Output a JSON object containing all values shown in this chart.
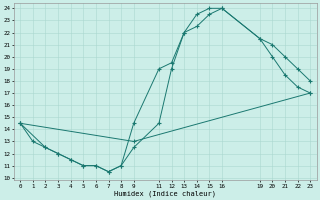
{
  "xlabel": "Humidex (Indice chaleur)",
  "background_color": "#cceee8",
  "grid_color": "#aad8d0",
  "line_color": "#1a7870",
  "line1_x": [
    0,
    1,
    2,
    3,
    4,
    5,
    6,
    7,
    8,
    9,
    11,
    12,
    13,
    14,
    15,
    16,
    19,
    20,
    21,
    22,
    23
  ],
  "line1_y": [
    14.5,
    13.0,
    12.5,
    12.0,
    11.5,
    11.0,
    11.0,
    10.5,
    11.0,
    12.5,
    14.5,
    19.0,
    22.0,
    23.5,
    24.0,
    24.0,
    21.5,
    21.0,
    20.0,
    19.0,
    18.0
  ],
  "line2_x": [
    0,
    2,
    3,
    4,
    5,
    6,
    7,
    8,
    9,
    11,
    12,
    13,
    14,
    15,
    16,
    19,
    20,
    21,
    22,
    23
  ],
  "line2_y": [
    14.5,
    12.5,
    12.0,
    11.5,
    11.0,
    11.0,
    10.5,
    11.0,
    14.5,
    19.0,
    19.5,
    22.0,
    22.5,
    23.5,
    24.0,
    21.5,
    20.0,
    18.5,
    17.5,
    17.0
  ],
  "line3_x": [
    0,
    9,
    23
  ],
  "line3_y": [
    14.5,
    13.0,
    17.0
  ],
  "xlim": [
    0,
    23
  ],
  "ylim": [
    10,
    24
  ],
  "xticks": [
    0,
    1,
    2,
    3,
    4,
    5,
    6,
    7,
    8,
    9,
    11,
    12,
    13,
    14,
    15,
    16,
    19,
    20,
    21,
    22,
    23
  ],
  "xtick_labels": [
    "0",
    "1",
    "2",
    "3",
    "4",
    "5",
    "6",
    "7",
    "8",
    "9",
    "11",
    "12",
    "13",
    "14",
    "15",
    "16",
    "19",
    "20",
    "21",
    "22",
    "23"
  ],
  "yticks": [
    10,
    11,
    12,
    13,
    14,
    15,
    16,
    17,
    18,
    19,
    20,
    21,
    22,
    23,
    24
  ],
  "ytick_labels": [
    "10",
    "11",
    "12",
    "13",
    "14",
    "15",
    "16",
    "17",
    "18",
    "19",
    "20",
    "21",
    "22",
    "23",
    "24"
  ],
  "grid_xticks": [
    0,
    1,
    2,
    3,
    4,
    5,
    6,
    7,
    8,
    9,
    10,
    11,
    12,
    13,
    14,
    15,
    16,
    17,
    18,
    19,
    20,
    21,
    22,
    23
  ],
  "marker": "+"
}
